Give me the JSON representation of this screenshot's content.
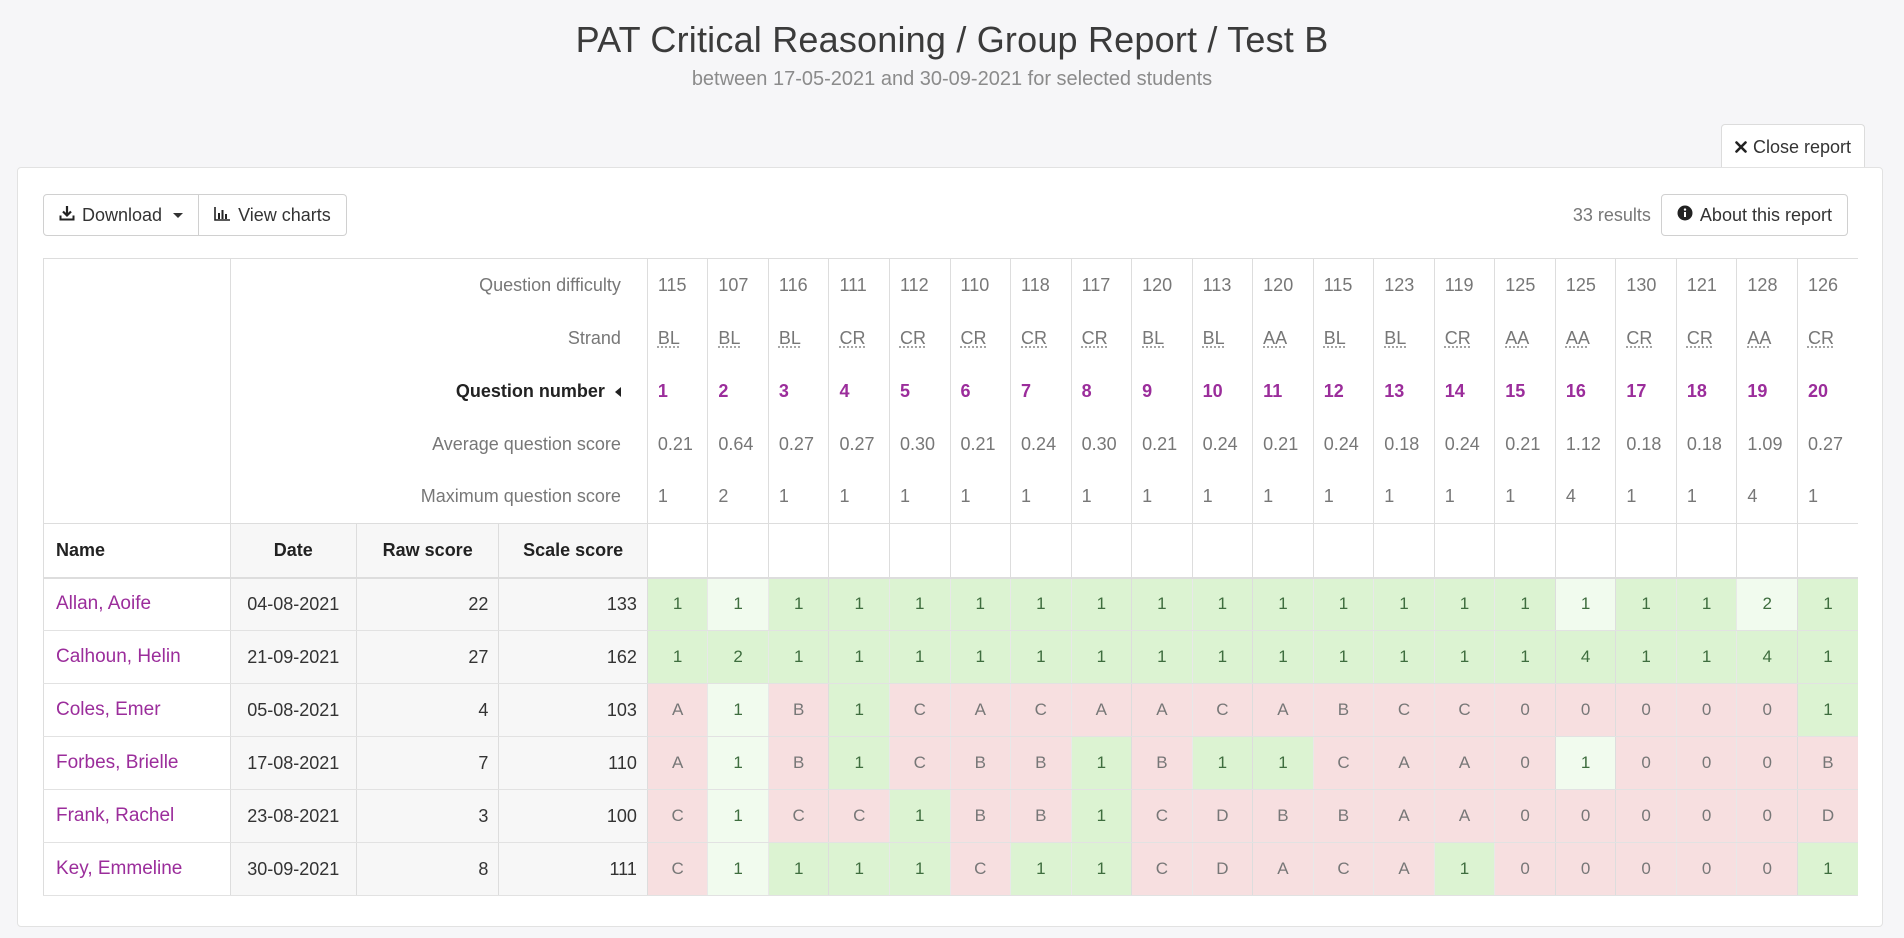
{
  "header": {
    "title": "PAT Critical Reasoning / Group Report / Test B",
    "subtitle": "between 17-05-2021 and 30-09-2021 for selected students"
  },
  "close_label": "Close report",
  "toolbar": {
    "download_label": "Download",
    "view_charts_label": "View charts",
    "results_count": "33 results",
    "about_label": "About this report"
  },
  "meta_labels": {
    "difficulty": "Question difficulty",
    "strand": "Strand",
    "question_number": "Question number",
    "average": "Average question score",
    "maximum": "Maximum question score"
  },
  "questions": [
    {
      "difficulty": "115",
      "strand": "BL",
      "number": "1",
      "average": "0.21",
      "maximum": "1"
    },
    {
      "difficulty": "107",
      "strand": "BL",
      "number": "2",
      "average": "0.64",
      "maximum": "2"
    },
    {
      "difficulty": "116",
      "strand": "BL",
      "number": "3",
      "average": "0.27",
      "maximum": "1"
    },
    {
      "difficulty": "111",
      "strand": "CR",
      "number": "4",
      "average": "0.27",
      "maximum": "1"
    },
    {
      "difficulty": "112",
      "strand": "CR",
      "number": "5",
      "average": "0.30",
      "maximum": "1"
    },
    {
      "difficulty": "110",
      "strand": "CR",
      "number": "6",
      "average": "0.21",
      "maximum": "1"
    },
    {
      "difficulty": "118",
      "strand": "CR",
      "number": "7",
      "average": "0.24",
      "maximum": "1"
    },
    {
      "difficulty": "117",
      "strand": "CR",
      "number": "8",
      "average": "0.30",
      "maximum": "1"
    },
    {
      "difficulty": "120",
      "strand": "BL",
      "number": "9",
      "average": "0.21",
      "maximum": "1"
    },
    {
      "difficulty": "113",
      "strand": "BL",
      "number": "10",
      "average": "0.24",
      "maximum": "1"
    },
    {
      "difficulty": "120",
      "strand": "AA",
      "number": "11",
      "average": "0.21",
      "maximum": "1"
    },
    {
      "difficulty": "115",
      "strand": "BL",
      "number": "12",
      "average": "0.24",
      "maximum": "1"
    },
    {
      "difficulty": "123",
      "strand": "BL",
      "number": "13",
      "average": "0.18",
      "maximum": "1"
    },
    {
      "difficulty": "119",
      "strand": "CR",
      "number": "14",
      "average": "0.24",
      "maximum": "1"
    },
    {
      "difficulty": "125",
      "strand": "AA",
      "number": "15",
      "average": "0.21",
      "maximum": "1"
    },
    {
      "difficulty": "125",
      "strand": "AA",
      "number": "16",
      "average": "1.12",
      "maximum": "4"
    },
    {
      "difficulty": "130",
      "strand": "CR",
      "number": "17",
      "average": "0.18",
      "maximum": "1"
    },
    {
      "difficulty": "121",
      "strand": "CR",
      "number": "18",
      "average": "0.18",
      "maximum": "1"
    },
    {
      "difficulty": "128",
      "strand": "AA",
      "number": "19",
      "average": "1.09",
      "maximum": "4"
    },
    {
      "difficulty": "126",
      "strand": "CR",
      "number": "20",
      "average": "0.27",
      "maximum": "1"
    }
  ],
  "columns": {
    "name": "Name",
    "date": "Date",
    "raw": "Raw score",
    "scale": "Scale score"
  },
  "students": [
    {
      "name": "Allan, Aoife",
      "date": "04-08-2021",
      "raw": "22",
      "scale": "133",
      "responses": [
        "1",
        "1",
        "1",
        "1",
        "1",
        "1",
        "1",
        "1",
        "1",
        "1",
        "1",
        "1",
        "1",
        "1",
        "1",
        "1",
        "1",
        "1",
        "2",
        "1"
      ]
    },
    {
      "name": "Calhoun, Helin",
      "date": "21-09-2021",
      "raw": "27",
      "scale": "162",
      "responses": [
        "1",
        "2",
        "1",
        "1",
        "1",
        "1",
        "1",
        "1",
        "1",
        "1",
        "1",
        "1",
        "1",
        "1",
        "1",
        "4",
        "1",
        "1",
        "4",
        "1"
      ]
    },
    {
      "name": "Coles, Emer",
      "date": "05-08-2021",
      "raw": "4",
      "scale": "103",
      "responses": [
        "A",
        "1",
        "B",
        "1",
        "C",
        "A",
        "C",
        "A",
        "A",
        "C",
        "A",
        "B",
        "C",
        "C",
        "0",
        "0",
        "0",
        "0",
        "0",
        "1"
      ]
    },
    {
      "name": "Forbes, Brielle",
      "date": "17-08-2021",
      "raw": "7",
      "scale": "110",
      "responses": [
        "A",
        "1",
        "B",
        "1",
        "C",
        "B",
        "B",
        "1",
        "B",
        "1",
        "1",
        "C",
        "A",
        "A",
        "0",
        "1",
        "0",
        "0",
        "0",
        "B"
      ]
    },
    {
      "name": "Frank, Rachel",
      "date": "23-08-2021",
      "raw": "3",
      "scale": "100",
      "responses": [
        "C",
        "1",
        "C",
        "C",
        "1",
        "B",
        "B",
        "1",
        "C",
        "D",
        "B",
        "B",
        "A",
        "A",
        "0",
        "0",
        "0",
        "0",
        "0",
        "D"
      ]
    },
    {
      "name": "Key, Emmeline",
      "date": "30-09-2021",
      "raw": "8",
      "scale": "111",
      "responses": [
        "C",
        "1",
        "1",
        "1",
        "1",
        "C",
        "1",
        "1",
        "C",
        "D",
        "A",
        "C",
        "A",
        "1",
        "0",
        "0",
        "0",
        "0",
        "0",
        "1"
      ]
    }
  ],
  "colors": {
    "full_credit": "#dcf3d2",
    "partial_credit": "#f1fbee",
    "incorrect": "#f7dfe0",
    "accent": "#9b2d9b"
  }
}
